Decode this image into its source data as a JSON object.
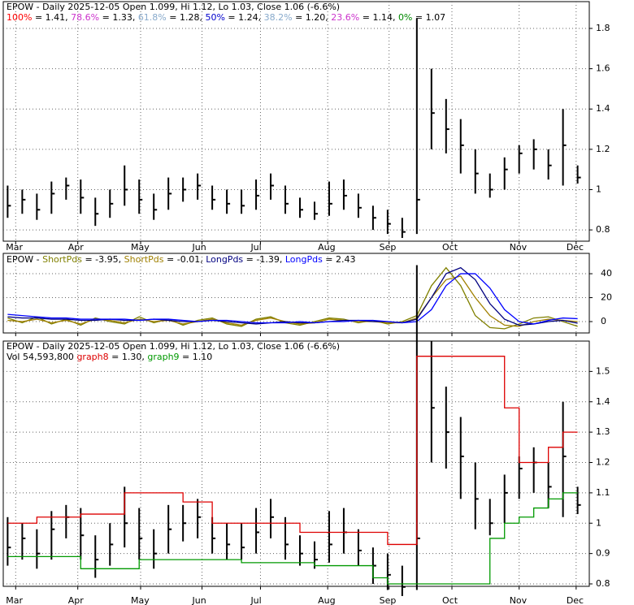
{
  "chart_data": [
    {
      "type": "ohlc",
      "title": "EPOW - Daily 2025-12-05 Open 1.099, Hi 1.12, Lo 1.03, Close 1.06 (-6.6%)",
      "fib_levels": [
        {
          "name": "100%",
          "text": "= 1.41,",
          "color": "#ff0000"
        },
        {
          "name": "78.6%",
          "text": "= 1.33,",
          "color": "#cc33cc"
        },
        {
          "name": "61.8%",
          "text": "= 1.28,",
          "color": "#88aacc"
        },
        {
          "name": "50%",
          "text": "= 1.24,",
          "color": "#0000cc"
        },
        {
          "name": "38.2%",
          "text": "= 1.20,",
          "color": "#88aacc"
        },
        {
          "name": "23.6%",
          "text": "= 1.14,",
          "color": "#cc33cc"
        },
        {
          "name": "0%",
          "text": "= 1.07",
          "color": "#008800"
        }
      ],
      "high": [
        1.02,
        1.0,
        0.98,
        1.04,
        1.06,
        1.05,
        0.96,
        1.0,
        1.12,
        1.05,
        0.98,
        1.06,
        1.06,
        1.08,
        1.02,
        1.0,
        1.0,
        1.05,
        1.08,
        1.02,
        0.96,
        0.94,
        1.04,
        1.05,
        0.98,
        0.92,
        0.9,
        0.86,
        1.85,
        1.6,
        1.45,
        1.35,
        1.2,
        1.08,
        1.16,
        1.22,
        1.25,
        1.2,
        1.4,
        1.12
      ],
      "low": [
        0.86,
        0.88,
        0.85,
        0.88,
        0.95,
        0.88,
        0.82,
        0.86,
        0.92,
        0.88,
        0.85,
        0.9,
        0.94,
        0.95,
        0.9,
        0.88,
        0.88,
        0.9,
        0.95,
        0.88,
        0.86,
        0.85,
        0.87,
        0.9,
        0.86,
        0.8,
        0.78,
        0.76,
        0.78,
        1.2,
        1.18,
        1.08,
        0.98,
        0.96,
        1.0,
        1.08,
        1.1,
        1.05,
        1.02,
        1.03
      ],
      "close": [
        0.92,
        0.95,
        0.9,
        0.98,
        1.02,
        0.96,
        0.88,
        0.93,
        1.0,
        0.95,
        0.9,
        0.98,
        1.0,
        1.02,
        0.95,
        0.93,
        0.92,
        0.97,
        1.02,
        0.93,
        0.9,
        0.88,
        0.93,
        0.97,
        0.91,
        0.86,
        0.83,
        0.79,
        0.95,
        1.38,
        1.3,
        1.22,
        1.08,
        1.0,
        1.1,
        1.18,
        1.2,
        1.12,
        1.22,
        1.06
      ],
      "xlim": [
        -0.3,
        39.8
      ],
      "xticks": [
        {
          "value": 0.55,
          "label": "Mar"
        },
        {
          "value": 4.8,
          "label": "Apr"
        },
        {
          "value": 9.1,
          "label": "May"
        },
        {
          "value": 13.3,
          "label": "Jun"
        },
        {
          "value": 17.3,
          "label": "Jul"
        },
        {
          "value": 21.9,
          "label": "Aug"
        },
        {
          "value": 26.1,
          "label": "Sep"
        },
        {
          "value": 30.4,
          "label": "Oct"
        },
        {
          "value": 35.0,
          "label": "Nov"
        },
        {
          "value": 38.9,
          "label": "Dec"
        }
      ],
      "ylim": [
        0.744,
        1.933
      ],
      "yticks": [
        0.8,
        1.0,
        1.2,
        1.4,
        1.6,
        1.8
      ],
      "color": "#000000",
      "grid": true
    },
    {
      "type": "line",
      "title": "EPOW -",
      "series": [
        {
          "name": "ShortPds",
          "legend_value": "= -3.95,",
          "color": "#808000",
          "values": [
            3,
            -1,
            4,
            -2,
            2,
            -3,
            3,
            0,
            -2,
            4,
            -1,
            2,
            -3,
            1,
            3,
            -2,
            -4,
            2,
            4,
            -1,
            -3,
            0,
            3,
            2,
            -1,
            1,
            -2,
            0,
            5,
            30,
            45,
            30,
            5,
            -5,
            -6,
            -2,
            3,
            4,
            0,
            -3.95
          ]
        },
        {
          "name": "ShortPds",
          "legend_value": "= -0.01,",
          "color": "#a08000",
          "values": [
            1,
            0,
            2,
            -1,
            1,
            -2,
            2,
            1,
            -1,
            2,
            0,
            1,
            -2,
            0,
            2,
            -1,
            -3,
            1,
            3,
            0,
            -2,
            -1,
            2,
            1,
            0,
            0,
            -1,
            -1,
            3,
            20,
            35,
            38,
            20,
            5,
            -3,
            -4,
            0,
            2,
            1,
            -0.01
          ]
        },
        {
          "name": "LongPds",
          "legend_value": "= -1.39,",
          "color": "#000080",
          "values": [
            4,
            3,
            3,
            2,
            2,
            1,
            1,
            2,
            1,
            1,
            2,
            1,
            0,
            0,
            1,
            0,
            -1,
            -2,
            -1,
            0,
            -1,
            -1,
            0,
            1,
            1,
            0,
            0,
            -1,
            2,
            20,
            40,
            45,
            35,
            15,
            2,
            -3,
            -2,
            0,
            1,
            -1.39
          ]
        },
        {
          "name": "LongPds",
          "legend_value": "= 2.43",
          "color": "#0000ff",
          "values": [
            6,
            5,
            4,
            3,
            3,
            2,
            2,
            2,
            2,
            1,
            2,
            2,
            1,
            0,
            1,
            1,
            0,
            -1,
            -1,
            -1,
            0,
            -1,
            0,
            0,
            1,
            1,
            0,
            -1,
            0,
            10,
            30,
            40,
            40,
            28,
            10,
            0,
            -2,
            1,
            3,
            2.43
          ]
        }
      ],
      "ylim": [
        -9.5,
        57
      ],
      "yticks": [
        0,
        20,
        40
      ],
      "grid": true
    },
    {
      "type": "ohlc-bands",
      "title": "EPOW - Daily 2025-12-05 Open 1.099, Hi 1.12, Lo 1.03, Close 1.06 (-6.6%)",
      "volume": "Vol 54,593,800",
      "series": [
        {
          "name": "graph8",
          "legend_value": "= 1.30,",
          "color": "#dd0000",
          "values": [
            1.0,
            1.0,
            1.02,
            1.02,
            1.02,
            1.03,
            1.03,
            1.03,
            1.1,
            1.1,
            1.1,
            1.1,
            1.07,
            1.07,
            1.0,
            1.0,
            1.0,
            1.0,
            1.0,
            1.0,
            0.97,
            0.97,
            0.97,
            0.97,
            0.97,
            0.97,
            0.93,
            0.93,
            1.55,
            1.55,
            1.55,
            1.55,
            1.55,
            1.55,
            1.38,
            1.2,
            1.2,
            1.25,
            1.3,
            1.3
          ]
        },
        {
          "name": "graph9",
          "legend_value": "= 1.10",
          "color": "#009900",
          "values": [
            0.89,
            0.89,
            0.89,
            0.89,
            0.89,
            0.85,
            0.85,
            0.85,
            0.85,
            0.88,
            0.88,
            0.88,
            0.88,
            0.88,
            0.88,
            0.88,
            0.87,
            0.87,
            0.87,
            0.87,
            0.87,
            0.86,
            0.86,
            0.86,
            0.86,
            0.82,
            0.8,
            0.8,
            0.8,
            0.8,
            0.8,
            0.8,
            0.8,
            0.95,
            1.0,
            1.02,
            1.05,
            1.08,
            1.1,
            1.1
          ]
        }
      ],
      "ylim": [
        0.792,
        1.6
      ],
      "yticks": [
        0.8,
        0.9,
        1.0,
        1.1,
        1.2,
        1.3,
        1.4,
        1.5
      ],
      "grid": true
    }
  ]
}
